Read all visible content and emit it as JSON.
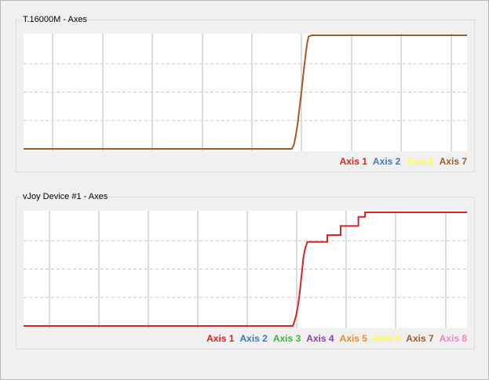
{
  "panels": [
    {
      "title": "T.16000M - Axes",
      "legend": [
        {
          "label": "Axis 1",
          "color": "#e02020"
        },
        {
          "label": "Axis 2",
          "color": "#3c78c0"
        },
        {
          "label": "Axis 6",
          "color": "#ffff40"
        },
        {
          "label": "Axis 7",
          "color": "#a05a2c"
        }
      ]
    },
    {
      "title": "vJoy Device #1 - Axes",
      "legend": [
        {
          "label": "Axis 1",
          "color": "#e02020"
        },
        {
          "label": "Axis 2",
          "color": "#3c78c0"
        },
        {
          "label": "Axis 3",
          "color": "#3cb43c"
        },
        {
          "label": "Axis 4",
          "color": "#8c3cb4"
        },
        {
          "label": "Axis 5",
          "color": "#f08c1e"
        },
        {
          "label": "Axis 6",
          "color": "#ffff40"
        },
        {
          "label": "Axis 7",
          "color": "#a05a2c"
        },
        {
          "label": "Axis 8",
          "color": "#f080c8"
        }
      ]
    }
  ],
  "chart_data": [
    {
      "type": "line",
      "title": "T.16000M - Axes",
      "ylim": [
        0,
        1
      ],
      "xlim": [
        0,
        100
      ],
      "grid": true,
      "legend_position": "bottom-right",
      "series": [
        {
          "name": "Axis 7",
          "color": "#a05a2c",
          "x": [
            0,
            60.5,
            61.0,
            61.4,
            61.8,
            62.2,
            62.6,
            63.0,
            63.4,
            63.7,
            64.0,
            64.3,
            65.0,
            100
          ],
          "y": [
            0,
            0,
            0.04,
            0.12,
            0.22,
            0.35,
            0.48,
            0.62,
            0.76,
            0.86,
            0.94,
            0.99,
            1.0,
            1.0
          ]
        }
      ]
    },
    {
      "type": "line",
      "title": "vJoy Device #1 - Axes",
      "ylim": [
        0,
        1
      ],
      "xlim": [
        0,
        100
      ],
      "grid": true,
      "legend_position": "bottom-right",
      "series": [
        {
          "name": "Axis 1",
          "color": "#e02020",
          "x": [
            0,
            60.7,
            61.1,
            61.5,
            61.9,
            62.3,
            62.7,
            63.1,
            63.5,
            64.0,
            68.5,
            68.5,
            71.5,
            71.5,
            75.5,
            75.5,
            77.0,
            77.0,
            100
          ],
          "y": [
            0,
            0,
            0.04,
            0.1,
            0.18,
            0.3,
            0.45,
            0.6,
            0.68,
            0.74,
            0.74,
            0.8,
            0.8,
            0.88,
            0.88,
            0.96,
            0.96,
            1.0,
            1.0
          ]
        }
      ]
    }
  ]
}
